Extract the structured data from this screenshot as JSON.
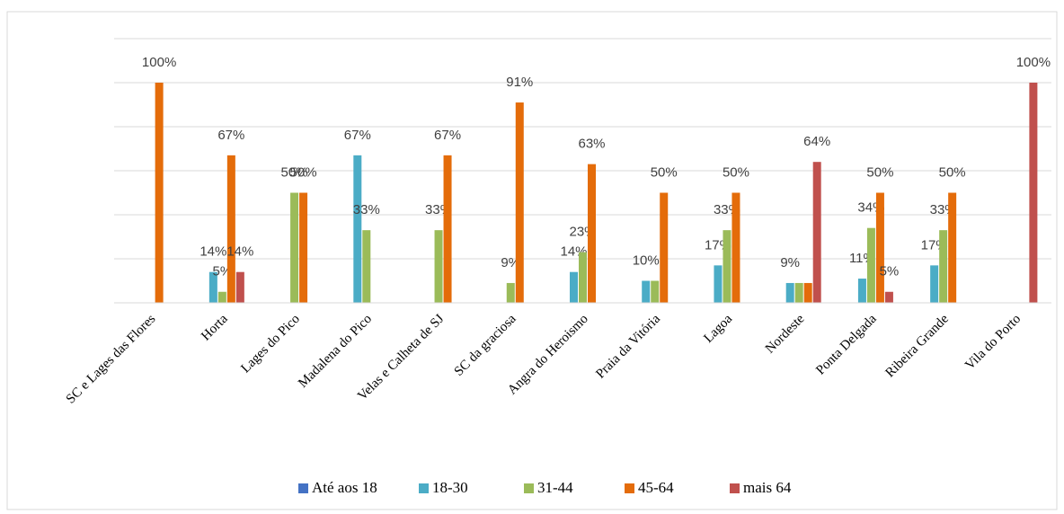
{
  "chart_data": {
    "type": "bar",
    "categories": [
      "SC e Lages das Flores",
      "Horta",
      "Lages do Pico",
      "Madalena do Pico",
      "Velas e Calheta de SJ",
      "SC da graciosa",
      "Angra do Heroismo",
      "Praia da Vitória",
      "Lagoa",
      "Nordeste",
      "Ponta Delgada",
      "Ribeira Grande",
      "Vila do Porto"
    ],
    "series": [
      {
        "name": "Até aos 18",
        "color": "#4472c4",
        "values": [
          null,
          null,
          null,
          null,
          null,
          null,
          null,
          null,
          null,
          null,
          null,
          null,
          null
        ],
        "value_labels": [
          null,
          null,
          null,
          null,
          null,
          null,
          null,
          null,
          null,
          null,
          null,
          null,
          null
        ]
      },
      {
        "name": "18-30",
        "color": "#4bacc6",
        "values": [
          null,
          14,
          null,
          67,
          null,
          null,
          14,
          10,
          17,
          9,
          11,
          17,
          null
        ],
        "value_labels": [
          null,
          "14%",
          null,
          "67%",
          null,
          null,
          "14%",
          "10%",
          "17%",
          "9%",
          "11%",
          "17%",
          null
        ]
      },
      {
        "name": "31-44",
        "color": "#9bbb59",
        "values": [
          null,
          5,
          50,
          33,
          33,
          9,
          23,
          10,
          33,
          9,
          34,
          33,
          null
        ],
        "value_labels": [
          null,
          "5%",
          "50%",
          "33%",
          "33%",
          "9%",
          "23%",
          null,
          "33%",
          null,
          "34%",
          "33%",
          null
        ]
      },
      {
        "name": "45-64",
        "color": "#e46c0a",
        "values": [
          100,
          67,
          50,
          null,
          67,
          91,
          63,
          50,
          50,
          9,
          50,
          50,
          null
        ],
        "value_labels": [
          "100%",
          "67%",
          "50%",
          null,
          "67%",
          "91%",
          "63%",
          "50%",
          "50%",
          null,
          "50%",
          "50%",
          null
        ]
      },
      {
        "name": "mais 64",
        "color": "#c0504d",
        "values": [
          null,
          14,
          null,
          null,
          null,
          null,
          null,
          null,
          null,
          64,
          5,
          null,
          100
        ],
        "value_labels": [
          null,
          "14%",
          null,
          null,
          null,
          null,
          null,
          null,
          null,
          "64%",
          "5%",
          null,
          "100%"
        ]
      }
    ],
    "ylim": [
      0,
      120
    ],
    "yticks": [
      0,
      20,
      40,
      60,
      80,
      100,
      120
    ],
    "grid": true,
    "legend": "bottom"
  }
}
